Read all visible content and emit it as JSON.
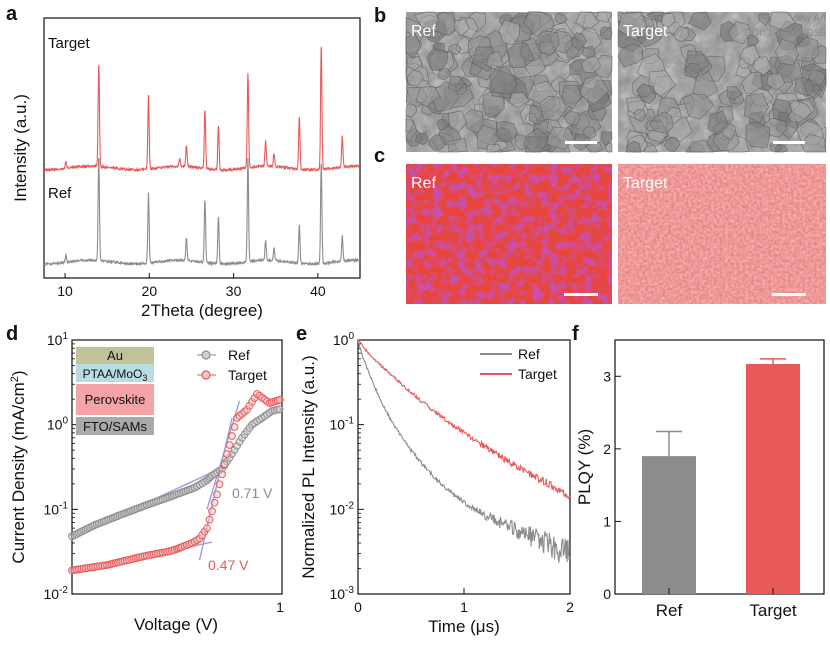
{
  "panels": {
    "a": "a",
    "b": "b",
    "c": "c",
    "d": "d",
    "e": "e",
    "f": "f"
  },
  "watermark": {
    "line1": "View Art",
    "line2": "DOI: 10.1039/D5E"
  },
  "panel_b": {
    "left_label": "Ref",
    "right_label": "Target"
  },
  "panel_c": {
    "left_label": "Ref",
    "right_label": "Target"
  },
  "colors": {
    "ref": "#8c8c8c",
    "target": "#e85a5a",
    "fit_line": "#a89bd4"
  },
  "chart_data": [
    {
      "id": "a",
      "type": "line",
      "xlabel": "2Theta (degree)",
      "ylabel": "Intensity (a.u.)",
      "xlim": [
        7.5,
        45
      ],
      "x_ticks": [
        10,
        20,
        30,
        40
      ],
      "series": [
        {
          "name": "Target",
          "peaks": [
            [
              10.1,
              0.04
            ],
            [
              14.0,
              0.58
            ],
            [
              19.9,
              0.41
            ],
            [
              23.6,
              0.04
            ],
            [
              24.4,
              0.12
            ],
            [
              26.6,
              0.33
            ],
            [
              28.2,
              0.25
            ],
            [
              31.7,
              0.53
            ],
            [
              33.8,
              0.14
            ],
            [
              34.8,
              0.07
            ],
            [
              37.8,
              0.29
            ],
            [
              40.4,
              0.7
            ],
            [
              42.9,
              0.17
            ]
          ]
        },
        {
          "name": "Ref",
          "peaks": [
            [
              10.1,
              0.04
            ],
            [
              14.0,
              0.58
            ],
            [
              19.9,
              0.39
            ],
            [
              24.4,
              0.12
            ],
            [
              26.6,
              0.35
            ],
            [
              28.2,
              0.26
            ],
            [
              31.7,
              0.57
            ],
            [
              33.8,
              0.11
            ],
            [
              34.8,
              0.07
            ],
            [
              37.8,
              0.21
            ],
            [
              40.4,
              0.57
            ],
            [
              42.9,
              0.14
            ]
          ]
        }
      ]
    },
    {
      "id": "d",
      "type": "scatter",
      "xlabel": "Voltage (V)",
      "ylabel": "Current Density (mA/cm²)",
      "ylabel_main": "Current Density (mA/cm",
      "ylabel_sup": "2",
      "ylabel_end": ")",
      "yscale": "log",
      "xlim": [
        0.16,
        1.0
      ],
      "ylim": [
        0.01,
        10
      ],
      "x_tick_labels": [
        "1"
      ],
      "y_tick_labels": [
        {
          "base": "10",
          "exp": "1"
        },
        {
          "base": "10",
          "exp": "0"
        },
        {
          "base": "10",
          "exp": "-1"
        },
        {
          "base": "10",
          "exp": "-2"
        }
      ],
      "legend": [
        "Ref",
        "Target"
      ],
      "device_stack": [
        {
          "label": "Au",
          "color": "#c2c29a"
        },
        {
          "label": "PTAA/MoO",
          "sub": "3",
          "color": "#b7dde3"
        },
        {
          "label": "Perovskite",
          "color": "#f4a4a6"
        },
        {
          "label": "FTO/SAMs",
          "color": "#a9a9a9"
        }
      ],
      "annotations": [
        {
          "text": "0.71 V",
          "series": "Ref"
        },
        {
          "text": "0.47 V",
          "series": "Target"
        }
      ],
      "series": [
        {
          "name": "Ref",
          "x": [
            0.16,
            0.25,
            0.35,
            0.45,
            0.55,
            0.65,
            0.7,
            0.72,
            0.76,
            0.8,
            0.84,
            0.88,
            0.92,
            0.96,
            1.0
          ],
          "y": [
            0.048,
            0.065,
            0.085,
            0.11,
            0.14,
            0.18,
            0.22,
            0.25,
            0.3,
            0.45,
            0.7,
            1.0,
            1.2,
            1.45,
            1.55
          ]
        },
        {
          "name": "Target",
          "x": [
            0.16,
            0.3,
            0.45,
            0.55,
            0.58,
            0.6,
            0.64,
            0.67,
            0.7,
            0.74,
            0.78,
            0.82,
            0.86,
            0.9,
            0.95,
            1.0
          ],
          "y": [
            0.019,
            0.022,
            0.028,
            0.032,
            0.034,
            0.036,
            0.04,
            0.045,
            0.06,
            0.15,
            0.45,
            1.2,
            1.5,
            2.3,
            1.8,
            2.0
          ]
        }
      ]
    },
    {
      "id": "e",
      "type": "line",
      "xlabel": "Time (μs)",
      "ylabel": "Normalized PL Intensity (a.u.)",
      "yscale": "log",
      "xlim": [
        0,
        2
      ],
      "ylim": [
        0.001,
        1
      ],
      "x_ticks": [
        0,
        1,
        2
      ],
      "y_tick_labels": [
        {
          "base": "10",
          "exp": "0"
        },
        {
          "base": "10",
          "exp": "-1"
        },
        {
          "base": "10",
          "exp": "-2"
        },
        {
          "base": "10",
          "exp": "-3"
        }
      ],
      "legend": [
        "Ref",
        "Target"
      ],
      "series": [
        {
          "name": "Ref",
          "x": [
            0,
            0.05,
            0.1,
            0.2,
            0.3,
            0.4,
            0.5,
            0.6,
            0.8,
            1.0,
            1.2,
            1.4,
            1.6,
            1.8,
            2.0
          ],
          "y": [
            1.0,
            0.6,
            0.42,
            0.21,
            0.12,
            0.075,
            0.05,
            0.035,
            0.019,
            0.012,
            0.0085,
            0.0065,
            0.005,
            0.0038,
            0.003
          ]
        },
        {
          "name": "Target",
          "x": [
            0,
            0.05,
            0.1,
            0.2,
            0.3,
            0.4,
            0.5,
            0.6,
            0.8,
            1.0,
            1.2,
            1.4,
            1.6,
            1.8,
            2.0
          ],
          "y": [
            1.0,
            0.82,
            0.7,
            0.52,
            0.4,
            0.31,
            0.24,
            0.19,
            0.12,
            0.08,
            0.055,
            0.038,
            0.027,
            0.02,
            0.014
          ]
        }
      ]
    },
    {
      "id": "f",
      "type": "bar",
      "ylabel": "PLQY (%)",
      "ylim": [
        0,
        3.5
      ],
      "y_ticks": [
        0,
        1,
        2,
        3
      ],
      "categories": [
        "Ref",
        "Target"
      ],
      "values": [
        1.9,
        3.17
      ],
      "errors": [
        0.34,
        0.07
      ]
    }
  ]
}
